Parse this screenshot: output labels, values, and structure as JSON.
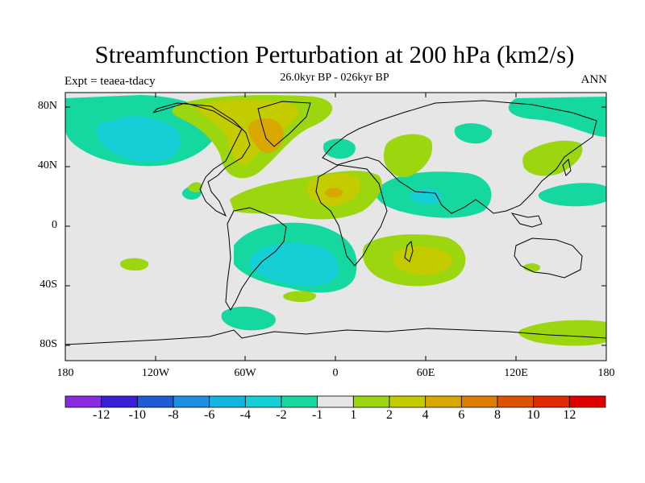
{
  "title": "Streamfunction Perturbation at 200 hPa (km2/s)",
  "subtitle_left": "Expt = teaea-tdacy",
  "subtitle_center": "26.0kyr BP - 026kyr BP",
  "subtitle_right": "ANN",
  "y_ticks": [
    "80N",
    "40N",
    "0",
    "40S",
    "80S"
  ],
  "x_ticks": [
    "180",
    "120W",
    "60W",
    "0",
    "60E",
    "120E",
    "180"
  ],
  "colorbar": {
    "labels": [
      "-12",
      "-10",
      "-8",
      "-6",
      "-4",
      "-2",
      "-1",
      "1",
      "2",
      "4",
      "6",
      "8",
      "10",
      "12"
    ],
    "colors": [
      "#8a2be2",
      "#3a1fd8",
      "#1f5bd6",
      "#1c8fe3",
      "#12b4e0",
      "#14cfd6",
      "#14d8a0",
      "#e6e6e6",
      "#9bd60f",
      "#c4cc00",
      "#d9a800",
      "#de7d00",
      "#dd5300",
      "#e02a00",
      "#e00000"
    ]
  },
  "colors": {
    "land_fill": "#e6e6e6",
    "coast": "#000000",
    "neutral": "#e6e6e6"
  }
}
